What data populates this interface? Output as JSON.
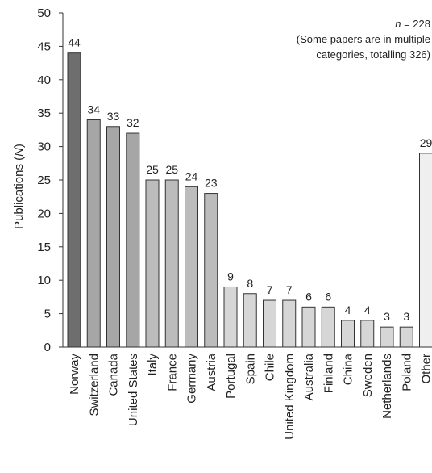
{
  "chart_data": {
    "type": "bar",
    "ylabel_prefix": "Publications (",
    "ylabel_var": "N",
    "ylabel_suffix": ")",
    "xlabel": "",
    "ylim": [
      0,
      50
    ],
    "yticks": [
      0,
      5,
      10,
      15,
      20,
      25,
      30,
      35,
      40,
      45,
      50
    ],
    "grid": false,
    "categories": [
      "Norway",
      "Switzerland",
      "Canada",
      "United States",
      "Italy",
      "France",
      "Germany",
      "Austria",
      "Portugal",
      "Spain",
      "Chile",
      "United Kingdom",
      "Australia",
      "Finland",
      "China",
      "Sweden",
      "Netherlands",
      "Poland",
      "Other"
    ],
    "values": [
      44,
      34,
      33,
      32,
      25,
      25,
      24,
      23,
      9,
      8,
      7,
      7,
      6,
      6,
      4,
      4,
      3,
      3,
      29
    ],
    "bar_colors": [
      "#6e6e6e",
      "#a6a6a6",
      "#a6a6a6",
      "#a6a6a6",
      "#bcbcbc",
      "#bcbcbc",
      "#bcbcbc",
      "#bcbcbc",
      "#d6d6d6",
      "#d6d6d6",
      "#d6d6d6",
      "#d6d6d6",
      "#d6d6d6",
      "#d6d6d6",
      "#d6d6d6",
      "#d6d6d6",
      "#d6d6d6",
      "#d6d6d6",
      "#efefef"
    ],
    "annotation": {
      "n_var": "n",
      "n_text": " = 228",
      "line2": "(Some papers are in multiple",
      "line3": "categories, totalling 326)"
    }
  }
}
